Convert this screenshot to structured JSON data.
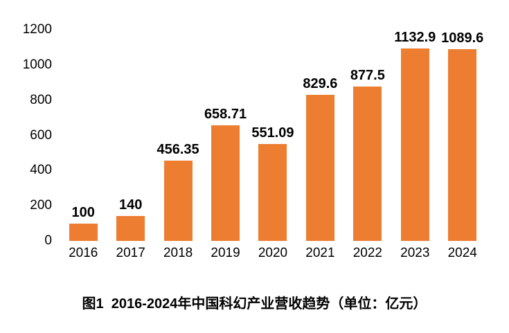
{
  "page": {
    "background_color": "#ffffff",
    "text_color": "#000000"
  },
  "chart_data": {
    "type": "bar",
    "title": "图1  2016-2024年中国科幻产业营收趋势（单位：亿元）",
    "categories": [
      "2016",
      "2017",
      "2018",
      "2019",
      "2020",
      "2021",
      "2022",
      "2023",
      "2024"
    ],
    "values": [
      100,
      140,
      456.35,
      658.71,
      551.09,
      829.6,
      877.5,
      1132.9,
      1089.6
    ],
    "value_labels": [
      "100",
      "140",
      "456.35",
      "658.71",
      "551.09",
      "829.6",
      "877.5",
      "1132.9",
      "1089.6"
    ],
    "xlabel": "",
    "ylabel": "",
    "ylim": [
      0,
      1200
    ],
    "yticks": [
      0,
      200,
      400,
      600,
      800,
      1000,
      1200
    ],
    "bar_color": "#ED7D31",
    "grid": "off",
    "legend": "none",
    "axis_lines": "none"
  }
}
